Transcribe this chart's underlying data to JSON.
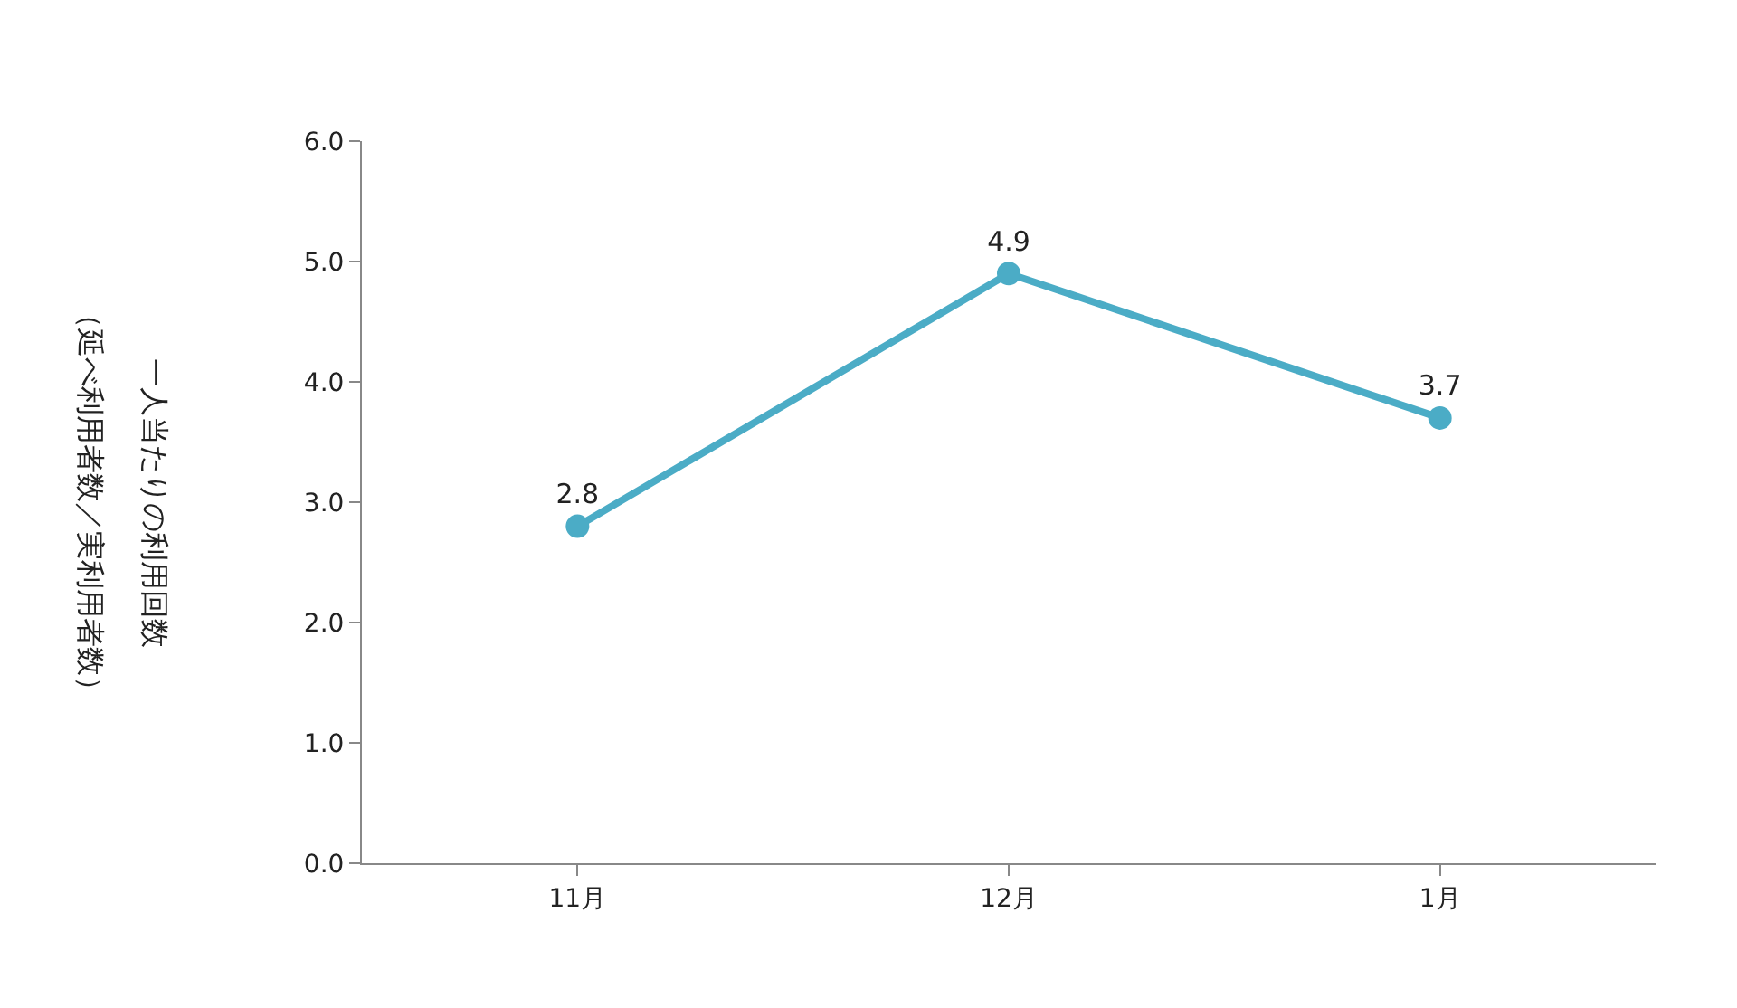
{
  "chart_data": {
    "type": "line",
    "ylabel": "一人当たりの利用回数",
    "annotations": [
      "（延べ利用者数／実利用者数）"
    ],
    "categories": [
      "11月",
      "12月",
      "1月"
    ],
    "series": [
      {
        "color": "#4bacc6",
        "values": [
          2.8,
          4.9,
          3.7
        ]
      }
    ],
    "ylim": [
      0,
      6
    ],
    "yticks": [
      {
        "value": 0,
        "label": "0.0"
      },
      {
        "value": 1,
        "label": "1.0"
      },
      {
        "value": 2,
        "label": "2.0"
      },
      {
        "value": 3,
        "label": "3.0"
      },
      {
        "value": 4,
        "label": "4.0"
      },
      {
        "value": 5,
        "label": "5.0"
      },
      {
        "value": 6,
        "label": "6.0"
      }
    ],
    "marker": "circle",
    "line_style": "solid",
    "data_labels": true
  }
}
